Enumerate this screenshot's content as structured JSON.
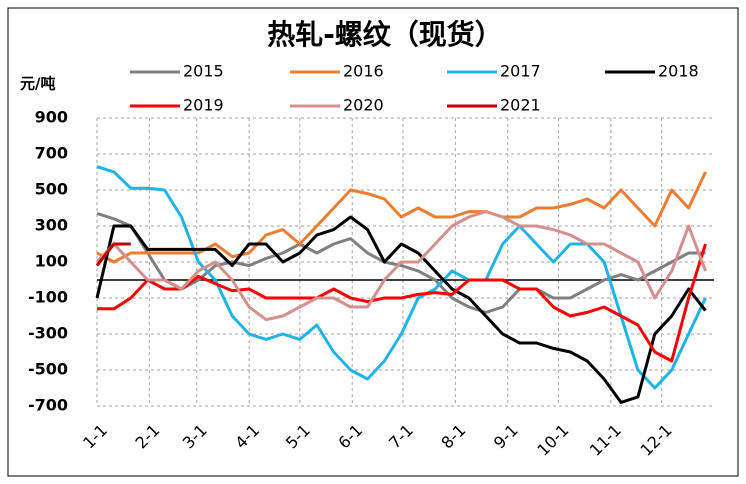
{
  "chart_data": {
    "type": "line",
    "title": "热轧-螺纹（现货）",
    "y_label": "元/吨",
    "x": [
      1,
      11,
      21,
      31,
      41,
      51,
      61,
      71,
      81,
      91,
      101,
      111,
      121,
      131,
      141,
      151,
      161,
      171,
      181,
      191,
      201,
      211,
      221,
      231,
      241,
      251,
      261,
      271,
      281,
      291,
      301,
      311,
      321,
      331,
      341,
      351,
      361
    ],
    "xlim": [
      1,
      366
    ],
    "xticks": [
      {
        "value": 1,
        "label": "1-1"
      },
      {
        "value": 32,
        "label": "2-1"
      },
      {
        "value": 60,
        "label": "3-1"
      },
      {
        "value": 91,
        "label": "4-1"
      },
      {
        "value": 121,
        "label": "5-1"
      },
      {
        "value": 152,
        "label": "6-1"
      },
      {
        "value": 182,
        "label": "7-1"
      },
      {
        "value": 213,
        "label": "8-1"
      },
      {
        "value": 244,
        "label": "9-1"
      },
      {
        "value": 274,
        "label": "10-1"
      },
      {
        "value": 305,
        "label": "11-1"
      },
      {
        "value": 335,
        "label": "12-1"
      }
    ],
    "ylim": [
      -700,
      900
    ],
    "yticks": [
      -700,
      -500,
      -300,
      -100,
      100,
      300,
      500,
      700,
      900
    ],
    "grid": true,
    "series": [
      {
        "name": "2015",
        "color": "#808080",
        "values": [
          370,
          340,
          300,
          150,
          0,
          -50,
          0,
          80,
          100,
          80,
          120,
          150,
          200,
          150,
          200,
          230,
          150,
          100,
          80,
          50,
          0,
          -100,
          -150,
          -180,
          -150,
          -50,
          -50,
          -100,
          -100,
          -50,
          0,
          30,
          0,
          50,
          100,
          150,
          150
        ]
      },
      {
        "name": "2016",
        "color": "#ed7d31",
        "values": [
          150,
          100,
          150,
          150,
          150,
          150,
          150,
          200,
          130,
          150,
          250,
          280,
          200,
          300,
          400,
          500,
          480,
          450,
          350,
          400,
          350,
          350,
          380,
          380,
          350,
          350,
          400,
          400,
          420,
          450,
          400,
          500,
          400,
          300,
          500,
          400,
          600
        ]
      },
      {
        "name": "2017",
        "color": "#1fb4e8",
        "values": [
          630,
          600,
          510,
          510,
          500,
          350,
          100,
          0,
          -200,
          -300,
          -330,
          -300,
          -330,
          -250,
          -400,
          -500,
          -550,
          -450,
          -300,
          -100,
          -50,
          50,
          0,
          0,
          200,
          300,
          200,
          100,
          200,
          200,
          100,
          -200,
          -500,
          -600,
          -500,
          -300,
          -100
        ]
      },
      {
        "name": "2018",
        "color": "#000000",
        "values": [
          -100,
          300,
          300,
          170,
          170,
          170,
          170,
          170,
          80,
          200,
          200,
          100,
          150,
          250,
          280,
          350,
          280,
          100,
          200,
          150,
          50,
          -50,
          -100,
          -200,
          -300,
          -350,
          -350,
          -380,
          -400,
          -450,
          -550,
          -680,
          -650,
          -300,
          -200,
          -50,
          -170
        ]
      },
      {
        "name": "2019",
        "color": "#ff0000",
        "values": [
          -160,
          -160,
          -100,
          0,
          -50,
          -50,
          20,
          -20,
          -60,
          -50,
          -100,
          -100,
          -100,
          -100,
          -50,
          -100,
          -120,
          -100,
          -100,
          -80,
          -70,
          -80,
          0,
          0,
          0,
          -50,
          -50,
          -150,
          -200,
          -180,
          -150,
          -200,
          -250,
          -400,
          -450,
          -100,
          200
        ]
      },
      {
        "name": "2020",
        "color": "#d4908c",
        "values": [
          100,
          200,
          100,
          0,
          0,
          -50,
          50,
          100,
          0,
          -150,
          -220,
          -200,
          -150,
          -100,
          -100,
          -150,
          -150,
          0,
          100,
          100,
          200,
          300,
          350,
          380,
          350,
          300,
          300,
          280,
          250,
          200,
          200,
          150,
          100,
          -100,
          50,
          300,
          50
        ]
      },
      {
        "name": "2021",
        "color": "#c00000",
        "values": [
          80,
          200,
          200,
          null,
          null,
          null,
          null,
          null,
          null,
          null,
          null,
          null,
          null,
          null,
          null,
          null,
          null,
          null,
          null,
          null,
          null,
          null,
          null,
          null,
          null,
          null,
          null,
          null,
          null,
          null,
          null,
          null,
          null,
          null,
          null,
          null,
          null
        ]
      }
    ]
  }
}
